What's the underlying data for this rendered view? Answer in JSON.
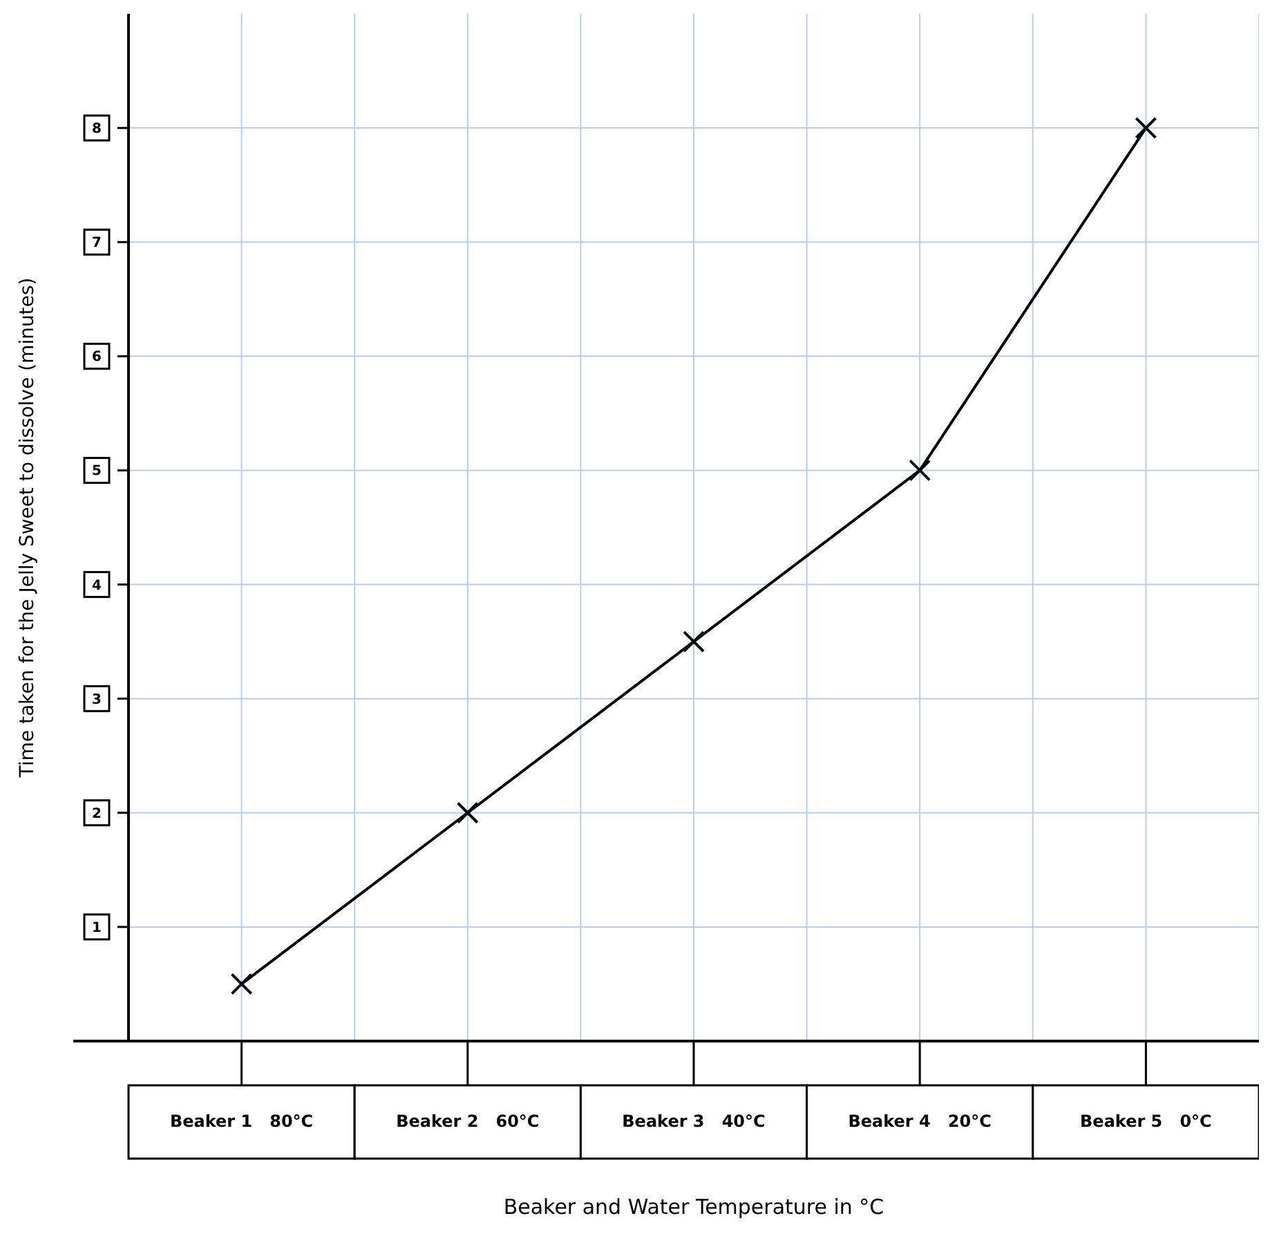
{
  "chart_data": {
    "type": "line",
    "xlabel": "Beaker and Water Temperature in °C",
    "ylabel": "Time taken for the Jelly Sweet to dissolve (minutes)",
    "categories": [
      "Beaker 1   80°C",
      "Beaker 2   60°C",
      "Beaker 3   40°C",
      "Beaker 4   20°C",
      "Beaker 5   0°C"
    ],
    "series": [
      {
        "color": "#000000",
        "values": [
          0.5,
          2,
          3.5,
          5,
          8
        ]
      }
    ],
    "ylim": [
      0,
      9
    ],
    "yticks": [
      1,
      2,
      3,
      4,
      5,
      6,
      7,
      8
    ],
    "grid": true,
    "marker": "cross",
    "line_style": "solid"
  }
}
